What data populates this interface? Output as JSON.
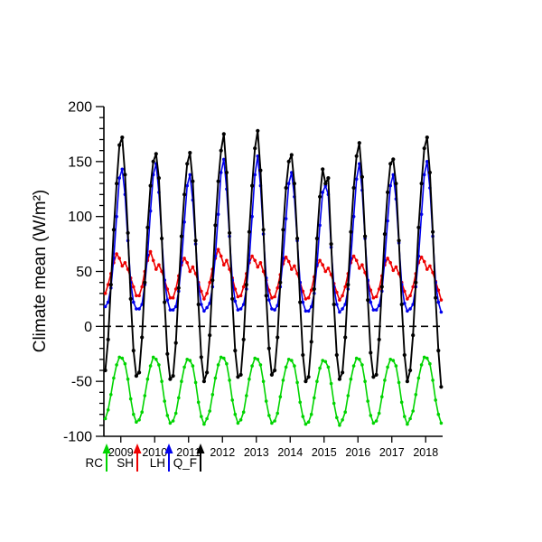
{
  "chart_data": {
    "type": "line",
    "title": "",
    "xlabel": "",
    "ylabel": "Climate mean (W/m²)",
    "ylim": [
      -100,
      200
    ],
    "y_major_tick_step": 50,
    "y_minor_tick_step": 10,
    "y_major_ticks": [
      -100,
      -50,
      0,
      50,
      100,
      150,
      200
    ],
    "x_tick_labels": [
      "2009",
      "2010",
      "2011",
      "2012",
      "2013",
      "2014",
      "2015",
      "2016",
      "2017",
      "2018"
    ],
    "zero_line": true,
    "grid": false,
    "background": "#ffffff",
    "axis_color": "#000000",
    "legend_position": "below-axis",
    "legend": [
      {
        "label": "RC",
        "color": "#00d400"
      },
      {
        "label": "SH",
        "color": "#ee0000"
      },
      {
        "label": "LH",
        "color": "#0000ee"
      },
      {
        "label": "Q_F",
        "color": "#000000"
      }
    ],
    "series": [
      {
        "name": "RC",
        "color": "#00d400",
        "values": [
          -84,
          -76,
          -62,
          -47,
          -35,
          -28,
          -29,
          -34,
          -48,
          -66,
          -80,
          -87,
          -85,
          -78,
          -63,
          -48,
          -36,
          -28,
          -30,
          -35,
          -50,
          -68,
          -81,
          -88,
          -86,
          -79,
          -65,
          -50,
          -37,
          -30,
          -31,
          -36,
          -51,
          -69,
          -82,
          -89,
          -84,
          -77,
          -62,
          -47,
          -35,
          -28,
          -29,
          -34,
          -49,
          -67,
          -80,
          -88,
          -85,
          -78,
          -63,
          -48,
          -36,
          -29,
          -30,
          -35,
          -50,
          -68,
          -81,
          -88,
          -86,
          -79,
          -64,
          -49,
          -37,
          -30,
          -31,
          -36,
          -51,
          -69,
          -82,
          -89,
          -87,
          -80,
          -65,
          -50,
          -38,
          -31,
          -32,
          -37,
          -52,
          -70,
          -83,
          -90,
          -85,
          -78,
          -63,
          -48,
          -36,
          -29,
          -30,
          -35,
          -50,
          -68,
          -81,
          -88,
          -86,
          -79,
          -64,
          -49,
          -37,
          -30,
          -31,
          -36,
          -51,
          -69,
          -82,
          -89,
          -84,
          -77,
          -62,
          -47,
          -35,
          -28,
          -29,
          -34,
          -49,
          -67,
          -80,
          -88
        ]
      },
      {
        "name": "SH",
        "color": "#ee0000",
        "values": [
          30,
          38,
          48,
          58,
          66,
          62,
          55,
          58,
          52,
          44,
          36,
          28,
          28,
          36,
          50,
          60,
          68,
          60,
          52,
          56,
          50,
          42,
          34,
          26,
          26,
          34,
          46,
          56,
          62,
          58,
          50,
          54,
          48,
          40,
          32,
          25,
          30,
          40,
          52,
          62,
          70,
          64,
          56,
          60,
          52,
          44,
          34,
          27,
          28,
          36,
          48,
          58,
          64,
          60,
          54,
          58,
          50,
          42,
          33,
          26,
          27,
          35,
          47,
          57,
          63,
          59,
          52,
          55,
          48,
          40,
          32,
          25,
          26,
          33,
          45,
          55,
          60,
          56,
          50,
          53,
          47,
          39,
          31,
          24,
          28,
          36,
          48,
          58,
          64,
          60,
          53,
          56,
          49,
          41,
          33,
          26,
          27,
          34,
          46,
          56,
          62,
          58,
          51,
          54,
          48,
          40,
          32,
          25,
          28,
          36,
          48,
          58,
          63,
          59,
          52,
          55,
          49,
          41,
          33,
          24
        ]
      },
      {
        "name": "LH",
        "color": "#0000ee",
        "values": [
          18,
          22,
          35,
          62,
          100,
          135,
          143,
          120,
          78,
          40,
          22,
          16,
          16,
          20,
          38,
          65,
          105,
          138,
          148,
          122,
          80,
          42,
          24,
          15,
          15,
          18,
          32,
          58,
          95,
          128,
          138,
          115,
          75,
          38,
          20,
          14,
          17,
          21,
          36,
          64,
          102,
          140,
          152,
          125,
          82,
          42,
          23,
          15,
          16,
          20,
          34,
          60,
          100,
          138,
          155,
          128,
          84,
          44,
          24,
          16,
          15,
          19,
          36,
          62,
          98,
          130,
          140,
          118,
          78,
          40,
          22,
          14,
          14,
          18,
          30,
          56,
          92,
          122,
          128,
          120,
          72,
          36,
          20,
          13,
          16,
          20,
          34,
          62,
          100,
          134,
          148,
          124,
          80,
          42,
          22,
          15,
          15,
          19,
          32,
          60,
          96,
          128,
          138,
          116,
          76,
          38,
          21,
          14,
          16,
          20,
          36,
          64,
          102,
          138,
          150,
          126,
          82,
          40,
          22,
          13
        ]
      },
      {
        "name": "Q_F",
        "color": "#000000",
        "values": [
          -40,
          -12,
          38,
          88,
          130,
          165,
          172,
          138,
          85,
          25,
          -22,
          -45,
          -42,
          -10,
          40,
          90,
          128,
          150,
          157,
          135,
          80,
          22,
          -25,
          -48,
          -45,
          -15,
          35,
          82,
          120,
          148,
          158,
          132,
          78,
          20,
          -28,
          -50,
          -42,
          -8,
          42,
          92,
          132,
          160,
          175,
          140,
          85,
          25,
          -22,
          -46,
          -44,
          -12,
          38,
          86,
          128,
          162,
          178,
          142,
          88,
          28,
          -20,
          -44,
          -40,
          -10,
          40,
          88,
          126,
          150,
          156,
          130,
          80,
          22,
          -26,
          -50,
          -46,
          -14,
          34,
          80,
          118,
          143,
          130,
          135,
          75,
          20,
          -26,
          -48,
          -42,
          -10,
          38,
          86,
          126,
          155,
          167,
          136,
          82,
          24,
          -24,
          -46,
          -44,
          -12,
          36,
          84,
          122,
          148,
          152,
          130,
          78,
          20,
          -26,
          -50,
          -40,
          -8,
          40,
          90,
          130,
          162,
          172,
          140,
          86,
          26,
          -22,
          -55
        ]
      }
    ]
  }
}
